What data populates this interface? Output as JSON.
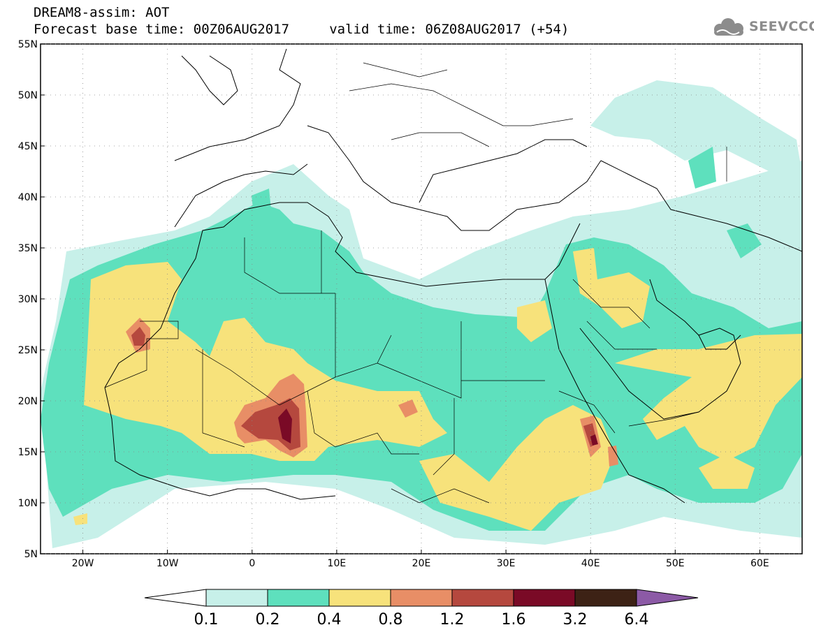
{
  "header": {
    "line1": "DREAM8-assim: AOT",
    "line2": "Forecast base time: 00Z06AUG2017     valid time: 06Z08AUG2017 (+54)"
  },
  "logo": {
    "text": "SEEVCCC",
    "icon": "cloud-icon"
  },
  "map": {
    "lat_labels": [
      "55N",
      "50N",
      "45N",
      "40N",
      "35N",
      "30N",
      "25N",
      "20N",
      "15N",
      "10N",
      "5N"
    ],
    "lon_labels": [
      "20W",
      "10W",
      "0",
      "10E",
      "20E",
      "30E",
      "40E",
      "50E",
      "60E"
    ],
    "lat_range": [
      5,
      55
    ],
    "lon_range": [
      -25,
      65
    ],
    "grid": "dotted"
  },
  "colorbar": {
    "levels": [
      "0.1",
      "0.2",
      "0.4",
      "0.8",
      "1.2",
      "1.6",
      "3.2",
      "6.4"
    ],
    "colors": [
      "#ffffff",
      "#c7f0e9",
      "#5ee0bd",
      "#f7e27b",
      "#e88e66",
      "#b5483e",
      "#7a0a26",
      "#3d2215",
      "#8c5aa6"
    ]
  },
  "colors": {
    "c1": "#c7f0e9",
    "c2": "#5ee0bd",
    "c3": "#f7e27b",
    "c4": "#e88e66",
    "c5": "#b5483e",
    "c6": "#7a0a26"
  }
}
